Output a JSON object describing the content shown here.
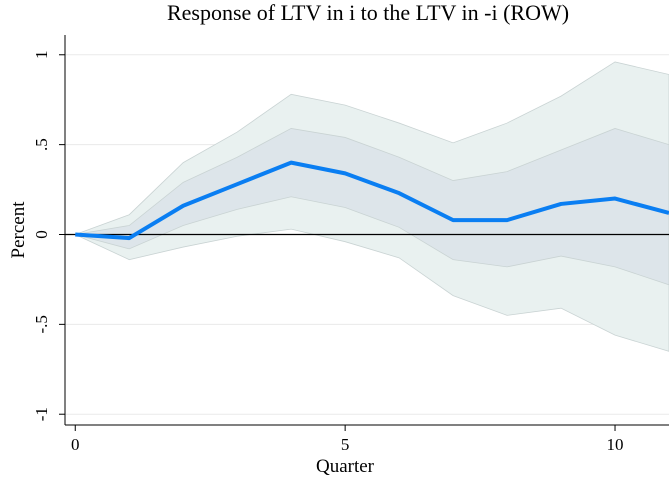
{
  "chart_data": {
    "type": "line",
    "title": "Response of LTV in i to the LTV in -i (ROW)",
    "x_label": "Quarter",
    "y_label": "Percent",
    "x": [
      0,
      1,
      2,
      3,
      4,
      5,
      6,
      7,
      8,
      9,
      10,
      11
    ],
    "series": [
      {
        "color": "#0a7ef2",
        "values": [
          0,
          -0.02,
          0.16,
          0.28,
          0.4,
          0.34,
          0.23,
          0.08,
          0.08,
          0.17,
          0.2,
          0.12
        ]
      }
    ],
    "bands": [
      {
        "color": "#e9f1f0",
        "lower": [
          0,
          -0.14,
          -0.07,
          -0.01,
          0.03,
          -0.04,
          -0.13,
          -0.34,
          -0.45,
          -0.41,
          -0.56,
          -0.65
        ],
        "upper": [
          0,
          0.11,
          0.4,
          0.57,
          0.78,
          0.72,
          0.62,
          0.51,
          0.62,
          0.77,
          0.96,
          0.89
        ]
      },
      {
        "color": "#dde5ea",
        "lower": [
          0,
          -0.08,
          0.05,
          0.14,
          0.21,
          0.15,
          0.04,
          -0.14,
          -0.18,
          -0.12,
          -0.18,
          -0.28
        ],
        "upper": [
          0,
          0.05,
          0.29,
          0.43,
          0.59,
          0.54,
          0.43,
          0.3,
          0.35,
          0.47,
          0.59,
          0.5
        ]
      }
    ],
    "hline": 0,
    "xlim": [
      -0.19,
      11
    ],
    "ylim": [
      -1.06,
      1.11
    ],
    "xticks": [
      0,
      5,
      10
    ],
    "yticks": [
      -1,
      {
        "value": -0.5,
        "label": "-.5"
      },
      0,
      {
        "value": 0.5,
        "label": ".5"
      },
      1
    ],
    "grid": true
  }
}
